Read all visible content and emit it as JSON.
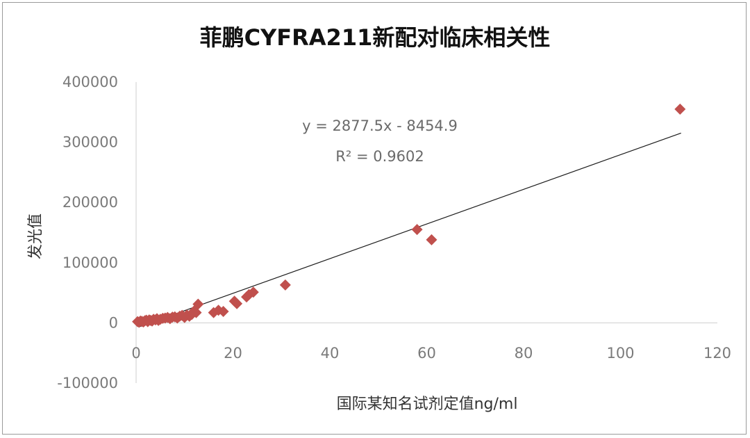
{
  "chart_data": {
    "type": "scatter",
    "title": "菲鹏CYFRA211新配对临床相关性",
    "xlabel": "国际某知名试剂定值ng/ml",
    "ylabel": "发光值",
    "xlim": [
      0,
      120
    ],
    "ylim": [
      -100000,
      400000
    ],
    "x_ticks": [
      0,
      20,
      40,
      60,
      80,
      100,
      120
    ],
    "y_ticks": [
      -100000,
      0,
      100000,
      200000,
      300000,
      400000
    ],
    "grid": false,
    "marker_color": "#c0504d",
    "trendline_color": "#1a1a1a",
    "trendline": {
      "slope": 2877.5,
      "intercept": -8454.9,
      "x_range": [
        0.5,
        112.5
      ],
      "equation_label": "y = 2877.5x - 8454.9",
      "r2_label": "R² = 0.9602"
    },
    "points": [
      [
        0.3,
        2000
      ],
      [
        0.6,
        1000
      ],
      [
        0.9,
        3000
      ],
      [
        1.2,
        2500
      ],
      [
        1.5,
        1500
      ],
      [
        1.8,
        3500
      ],
      [
        2.1,
        4500
      ],
      [
        2.4,
        2000
      ],
      [
        2.7,
        5000
      ],
      [
        3.0,
        4000
      ],
      [
        3.3,
        3000
      ],
      [
        3.6,
        6000
      ],
      [
        4.0,
        5000
      ],
      [
        4.3,
        7000
      ],
      [
        4.6,
        4000
      ],
      [
        5.0,
        6000
      ],
      [
        5.5,
        7500
      ],
      [
        6.0,
        8000
      ],
      [
        6.5,
        9000
      ],
      [
        7.0,
        7000
      ],
      [
        7.5,
        9500
      ],
      [
        8.0,
        10000
      ],
      [
        8.5,
        8000
      ],
      [
        9.0,
        11000
      ],
      [
        9.5,
        12500
      ],
      [
        10.0,
        9000
      ],
      [
        10.5,
        13000
      ],
      [
        11.0,
        11000
      ],
      [
        11.5,
        14000
      ],
      [
        12.0,
        20000
      ],
      [
        12.4,
        17000
      ],
      [
        12.8,
        31000
      ],
      [
        16.0,
        17000
      ],
      [
        17.0,
        21000
      ],
      [
        18.0,
        19000
      ],
      [
        20.3,
        36000
      ],
      [
        20.8,
        32000
      ],
      [
        22.8,
        43000
      ],
      [
        23.3,
        47000
      ],
      [
        24.2,
        51000
      ],
      [
        30.8,
        63000
      ],
      [
        58.0,
        155000
      ],
      [
        61.0,
        138000
      ],
      [
        112.3,
        355000
      ]
    ]
  }
}
